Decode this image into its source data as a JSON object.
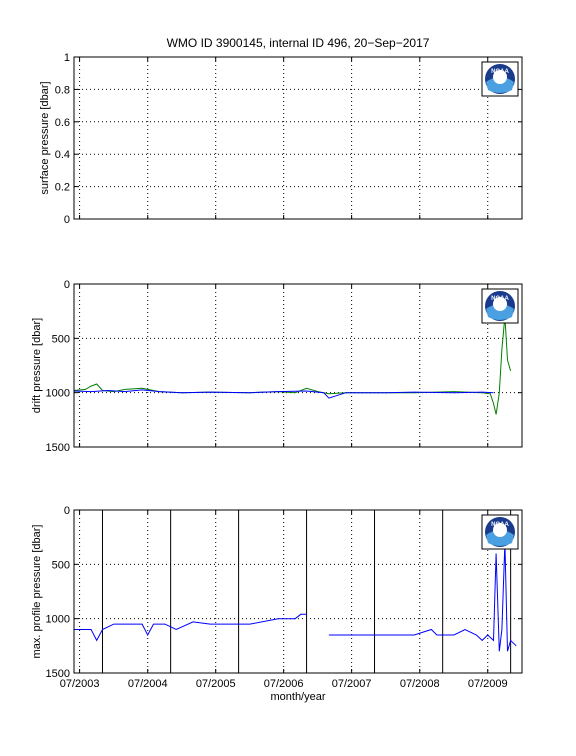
{
  "figure": {
    "title": "WMO ID 3900145, internal ID 496, 20−Sep−2017",
    "xlabel": "month/year",
    "x_ticks": [
      "07/2003",
      "07/2004",
      "07/2005",
      "07/2006",
      "07/2007",
      "07/2008",
      "07/2009"
    ],
    "logo_text": "NOAA",
    "colors": {
      "blue": "#0000ff",
      "green": "#008000",
      "grid": "#000000",
      "logo_blue": "#1a3a8c",
      "logo_light": "#4aa0e0"
    }
  },
  "chart_data": [
    {
      "type": "line",
      "ylabel": "surface pressure [dbar]",
      "y_ticks": [
        "0",
        "0.2",
        "0.4",
        "0.6",
        "0.8",
        "1"
      ],
      "ylim": [
        0,
        1
      ],
      "xlim": [
        "2003-06-01",
        "2010-01-01"
      ],
      "y_reversed": false,
      "grid": true,
      "series": []
    },
    {
      "type": "line",
      "ylabel": "drift pressure [dbar]",
      "y_ticks": [
        "0",
        "500",
        "1000",
        "1500"
      ],
      "ylim": [
        0,
        1500
      ],
      "xlim": [
        "2003-06-01",
        "2010-01-01"
      ],
      "y_reversed": true,
      "grid": true,
      "series": [
        {
          "color": "#008000",
          "x": [
            "2003-06-01",
            "2003-08-01",
            "2003-09-01",
            "2003-10-01",
            "2003-11-01",
            "2004-01-01",
            "2004-03-01",
            "2004-06-01",
            "2004-09-01",
            "2005-01-01",
            "2005-06-01",
            "2006-01-01",
            "2006-06-01",
            "2006-09-01",
            "2006-11-01",
            "2007-01-01",
            "2007-03-01",
            "2007-06-01",
            "2008-01-01",
            "2008-06-01",
            "2009-01-01",
            "2009-06-01",
            "2009-07-15",
            "2009-08-01",
            "2009-08-15",
            "2009-09-01",
            "2009-09-15",
            "2009-10-01",
            "2009-10-15",
            "2009-11-01"
          ],
          "y": [
            980,
            970,
            940,
            920,
            980,
            990,
            970,
            960,
            990,
            1000,
            995,
            1000,
            990,
            1000,
            960,
            990,
            1010,
            1000,
            1000,
            1000,
            990,
            1000,
            1010,
            1100,
            1200,
            1000,
            600,
            300,
            700,
            800
          ]
        },
        {
          "color": "#0000ff",
          "x": [
            "2003-06-01",
            "2003-09-01",
            "2003-12-01",
            "2004-03-01",
            "2004-06-01",
            "2004-09-01",
            "2005-01-01",
            "2005-06-01",
            "2006-01-01",
            "2006-06-01",
            "2006-11-01",
            "2007-02-01",
            "2007-03-01",
            "2007-06-01",
            "2008-01-01",
            "2008-06-01",
            "2009-01-01",
            "2009-06-01",
            "2009-08-01"
          ],
          "y": [
            985,
            990,
            980,
            990,
            975,
            990,
            1000,
            995,
            1000,
            990,
            985,
            1000,
            1050,
            1000,
            1000,
            995,
            1000,
            995,
            1000
          ]
        }
      ]
    },
    {
      "type": "line",
      "ylabel": "max. profile pressure [dbar]",
      "y_ticks": [
        "0",
        "500",
        "1000",
        "1500"
      ],
      "ylim": [
        0,
        1500
      ],
      "xlim": [
        "2003-06-01",
        "2010-01-01"
      ],
      "y_reversed": true,
      "grid": true,
      "vertical_lines": [
        "2003-11-01",
        "2004-11-01",
        "2005-11-01",
        "2006-11-01",
        "2007-11-01",
        "2008-11-01",
        "2009-11-01"
      ],
      "series": [
        {
          "color": "#0000ff",
          "x": [
            "2003-06-01",
            "2003-09-01",
            "2003-10-01",
            "2003-11-01",
            "2004-01-01",
            "2004-03-01",
            "2004-06-01",
            "2004-07-01",
            "2004-08-01",
            "2004-10-01",
            "2004-12-01",
            "2005-03-01",
            "2005-06-01",
            "2005-09-01",
            "2006-01-01",
            "2006-06-01",
            "2006-09-01",
            "2006-10-01",
            "2006-11-01"
          ],
          "y": [
            1100,
            1100,
            1200,
            1100,
            1050,
            1050,
            1050,
            1150,
            1050,
            1050,
            1100,
            1030,
            1050,
            1050,
            1050,
            1000,
            1000,
            960,
            960
          ]
        },
        {
          "color": "#0000ff",
          "x": [
            "2007-03-01",
            "2007-06-01",
            "2008-01-01",
            "2008-06-01",
            "2008-09-01",
            "2008-10-01",
            "2009-01-01",
            "2009-03-01",
            "2009-05-01",
            "2009-06-01",
            "2009-07-01",
            "2009-08-01",
            "2009-08-15",
            "2009-09-01",
            "2009-09-15",
            "2009-10-01",
            "2009-10-15",
            "2009-11-01",
            "2009-12-01"
          ],
          "y": [
            1150,
            1150,
            1150,
            1150,
            1100,
            1150,
            1150,
            1100,
            1150,
            1200,
            1150,
            1200,
            400,
            1300,
            1100,
            300,
            1300,
            1200,
            1250
          ]
        }
      ]
    }
  ]
}
